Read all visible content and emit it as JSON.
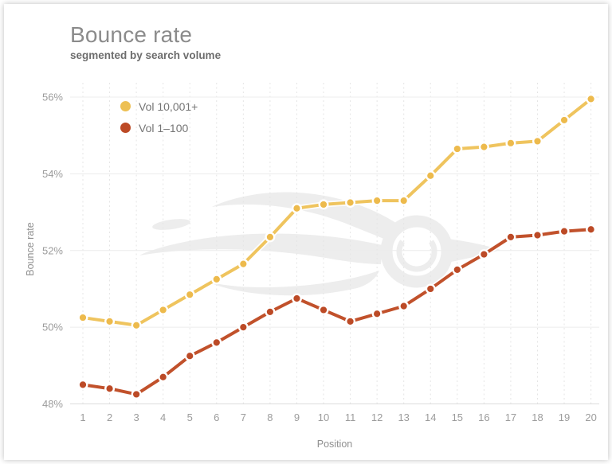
{
  "header": {
    "title": "Bounce rate",
    "subtitle": "segmented by search volume"
  },
  "chart_data": {
    "type": "line",
    "title": "Bounce rate",
    "subtitle": "segmented by search volume",
    "xlabel": "Position",
    "ylabel": "Bounce rate",
    "x": [
      1,
      2,
      3,
      4,
      5,
      6,
      7,
      8,
      9,
      10,
      11,
      12,
      13,
      14,
      15,
      16,
      17,
      18,
      19,
      20
    ],
    "ylim": [
      48,
      56
    ],
    "y_ticks": [
      48,
      50,
      52,
      54,
      56
    ],
    "y_tick_labels": [
      "48%",
      "50%",
      "52%",
      "54%",
      "56%"
    ],
    "grid": "horizontal solid, vertical dashed",
    "legend_position": "top-left",
    "watermark": "semrush-logo",
    "series": [
      {
        "name": "Vol 10,001+",
        "line_color": "#EFC45E",
        "dot_color": "#EDBA4C",
        "values": [
          50.25,
          50.15,
          50.05,
          50.45,
          50.85,
          51.25,
          51.65,
          52.35,
          53.1,
          53.2,
          53.25,
          53.3,
          53.3,
          53.95,
          54.65,
          54.7,
          54.8,
          54.85,
          55.4,
          55.95
        ]
      },
      {
        "name": "Vol 1–100",
        "line_color": "#C1512B",
        "dot_color": "#BC4A26",
        "values": [
          48.5,
          48.4,
          48.25,
          48.7,
          49.25,
          49.6,
          50.0,
          50.4,
          50.75,
          50.45,
          50.15,
          50.35,
          50.55,
          51.0,
          51.5,
          51.9,
          52.35,
          52.4,
          52.5,
          52.55
        ]
      }
    ],
    "colors": {
      "grid_line": "#ECECEC",
      "axis_line": "#DCDCDC",
      "vertical_grid": "#E5E5E5",
      "tick_label": "#9C9C9C",
      "watermark": "#EDEDED"
    }
  }
}
